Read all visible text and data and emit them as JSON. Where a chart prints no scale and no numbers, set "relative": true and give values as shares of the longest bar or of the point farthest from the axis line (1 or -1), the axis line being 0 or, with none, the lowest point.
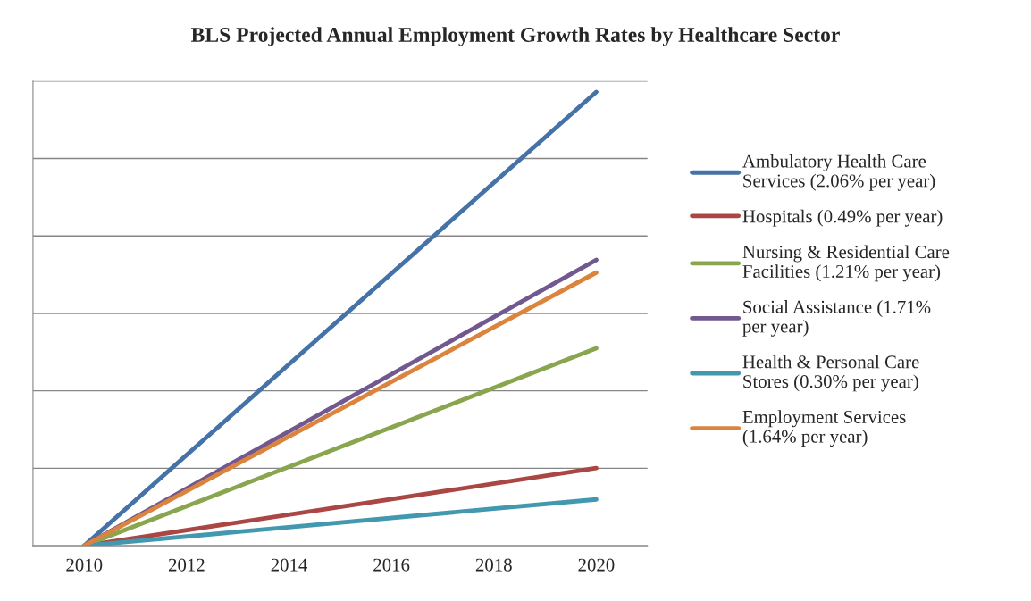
{
  "chart_data": {
    "type": "line",
    "title": "BLS Projected Annual Employment Growth Rates by Healthcare Sector",
    "relative": true,
    "x": [
      2010,
      2020
    ],
    "xlim": [
      2009,
      2021
    ],
    "xticks": [
      2010,
      2012,
      2014,
      2016,
      2018,
      2020
    ],
    "grid": "y",
    "legend": "right",
    "marker": "none",
    "line_style": "solid",
    "series": [
      {
        "name": "Ambulatory Health Care\nServices (2.06% per year)",
        "color": "#4572a7",
        "values": [
          0,
          1
        ]
      },
      {
        "name": "Hospitals (0.49% per year)",
        "color": "#aa4643",
        "values": [
          0,
          0.171
        ]
      },
      {
        "name": "Nursing & Residential Care\nFacilities (1.21% per year)",
        "color": "#89a54e",
        "values": [
          0,
          0.435
        ]
      },
      {
        "name": "Social Assistance (1.71%\nper year)",
        "color": "#71588f",
        "values": [
          0,
          0.63
        ]
      },
      {
        "name": "Health & Personal Care\nStores (0.30% per year)",
        "color": "#4198af",
        "values": [
          0,
          0.102
        ]
      },
      {
        "name": "Employment Services\n(1.64% per year)",
        "color": "#db843d",
        "values": [
          0,
          0.602
        ]
      }
    ]
  }
}
